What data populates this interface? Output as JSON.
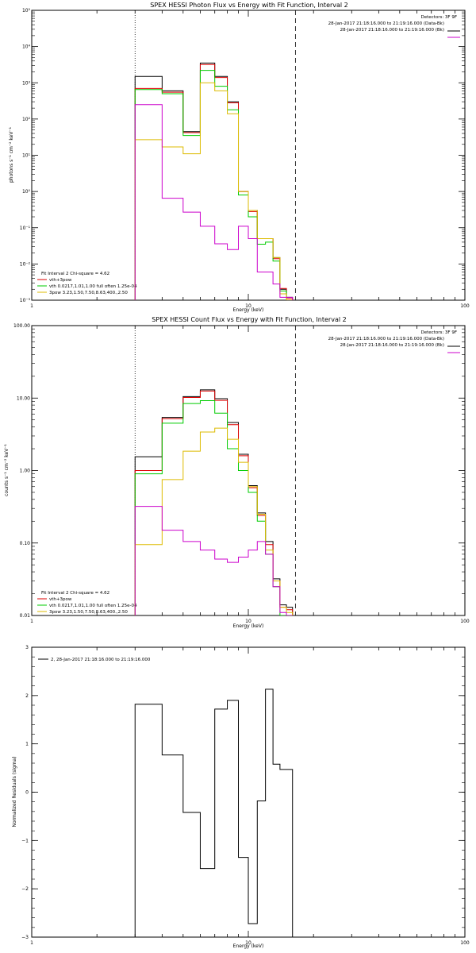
{
  "chart_data": [
    {
      "type": "line",
      "title": "SPEX HESSI Photon Flux vs Energy with Fit Function, Interval 2",
      "xlabel": "Energy (keV)",
      "ylabel": "photons s⁻¹ cm⁻² keV⁻¹",
      "xscale": "log",
      "yscale": "log",
      "xlim": [
        1,
        100
      ],
      "ylim": [
        0.001,
        100000
      ],
      "x_tick_labels": [
        "1",
        "10",
        "100"
      ],
      "y_tick_labels": [
        "10⁻³",
        "10⁻²",
        "10⁻¹",
        "10⁰",
        "10¹",
        "10²",
        "10³",
        "10⁴",
        "10⁵"
      ],
      "step": true,
      "energy_edges": [
        3,
        4,
        5,
        6,
        7,
        8,
        9,
        10,
        11,
        12,
        13,
        14,
        15,
        16
      ],
      "vlines": {
        "dotted": 3.0,
        "dashed": 16.5
      },
      "legend_top": {
        "header": "Detectors: 3F 9F",
        "entries": [
          {
            "label": "28-Jan-2017 21:18:16.000 to 21:19:16.000 (Data-Bk)",
            "color": "#000000"
          },
          {
            "label": "28-Jan-2017 21:18:16.000 to 21:19:16.000 (Bk)",
            "color": "#cc00cc"
          }
        ]
      },
      "legend_bottom": {
        "header": "Fit Interval 2   Chi-square = 4.62",
        "entries": [
          {
            "label": "vth+3pow",
            "color": "#dd0000"
          },
          {
            "label": "vth 0.0217,1.01,1.00  full often 1.25e-04",
            "color": "#00cc00"
          },
          {
            "label": "3pow 3.23,1.50,7.50,8.63,400.,2.50",
            "color": "#ddbb00"
          }
        ]
      },
      "series": [
        {
          "name": "Data-Bk",
          "color": "#000000",
          "values": [
            1500,
            600,
            45,
            3500,
            1500,
            300,
            1,
            0.3,
            0.05,
            0.05,
            0.015,
            0.002,
            0.0012
          ]
        },
        {
          "name": "vth+3pow",
          "color": "#dd0000",
          "values": [
            700,
            550,
            42,
            3200,
            1400,
            280,
            1,
            0.28,
            0.05,
            0.05,
            0.014,
            0.0021,
            0.0011
          ]
        },
        {
          "name": "vth",
          "color": "#00cc00",
          "values": [
            650,
            500,
            35,
            2200,
            800,
            180,
            0.8,
            0.2,
            0.035,
            0.04,
            0.012,
            0.0018,
            0.001
          ]
        },
        {
          "name": "3pow",
          "color": "#ddbb00",
          "values": [
            27,
            17,
            11,
            1000,
            600,
            140,
            1,
            0.3,
            0.05,
            0.05,
            0.015,
            0.0015,
            0.001
          ]
        },
        {
          "name": "Bk",
          "color": "#cc00cc",
          "values": [
            250,
            0.65,
            0.27,
            0.11,
            0.036,
            0.025,
            0.11,
            0.05,
            0.006,
            0.006,
            0.0028,
            0.0012,
            0.0012
          ]
        }
      ]
    },
    {
      "type": "line",
      "title": "SPEX HESSI Count Flux vs Energy with Fit Function, Interval 2",
      "xlabel": "Energy (keV)",
      "ylabel": "counts s⁻¹ cm⁻² keV⁻¹",
      "xscale": "log",
      "yscale": "log",
      "xlim": [
        1,
        100
      ],
      "ylim": [
        0.01,
        100
      ],
      "x_tick_labels": [
        "1",
        "10",
        "100"
      ],
      "y_tick_labels": [
        "0.01",
        "0.10",
        "1.00",
        "10.00",
        "100.00"
      ],
      "step": true,
      "energy_edges": [
        3,
        4,
        5,
        6,
        7,
        8,
        9,
        10,
        11,
        12,
        13,
        14,
        15,
        16
      ],
      "vlines": {
        "dotted": 3.0,
        "dashed": 16.5
      },
      "legend_top": {
        "header": "Detectors: 3F 9F",
        "entries": [
          {
            "label": "28-Jan-2017 21:18:16.000 to 21:19:16.000 (Data-Bk)",
            "color": "#000000"
          },
          {
            "label": "28-Jan-2017 21:18:16.000 to 21:19:16.000 (Bk)",
            "color": "#cc00cc"
          }
        ]
      },
      "legend_bottom": {
        "header": "Fit Interval 2   Chi-square = 4.62",
        "entries": [
          {
            "label": "vth+3pow",
            "color": "#dd0000"
          },
          {
            "label": "vth 0.0217,1.01,1.00  full often 1.25e-04",
            "color": "#00cc00"
          },
          {
            "label": "3pow 3.23,1.50,7.50,8.63,400.,2.50",
            "color": "#ddbb00"
          }
        ]
      },
      "series": [
        {
          "name": "Data-Bk",
          "color": "#000000",
          "values": [
            1.55,
            5.4,
            10.5,
            13.0,
            9.8,
            4.6,
            1.68,
            0.62,
            0.26,
            0.105,
            0.032,
            0.014,
            0.013
          ]
        },
        {
          "name": "vth+3pow",
          "color": "#dd0000",
          "values": [
            1.0,
            5.2,
            10.2,
            12.5,
            9.3,
            4.3,
            1.6,
            0.58,
            0.24,
            0.095,
            0.03,
            0.013,
            0.012
          ]
        },
        {
          "name": "vth",
          "color": "#00cc00",
          "values": [
            0.9,
            4.5,
            8.4,
            9.2,
            6.2,
            2.0,
            1.0,
            0.5,
            0.2,
            0.07,
            0.025,
            0.01,
            0.01
          ]
        },
        {
          "name": "3pow",
          "color": "#ddbb00",
          "values": [
            0.095,
            0.75,
            1.85,
            3.4,
            3.85,
            2.7,
            1.3,
            0.6,
            0.25,
            0.08,
            0.03,
            0.013,
            0.011
          ]
        },
        {
          "name": "Bk",
          "color": "#cc00cc",
          "values": [
            0.32,
            0.15,
            0.105,
            0.08,
            0.06,
            0.054,
            0.064,
            0.08,
            0.105,
            0.07,
            0.025,
            0.011,
            0.01
          ]
        }
      ]
    },
    {
      "type": "line",
      "title": "",
      "xlabel": "Energy (keV)",
      "ylabel": "Normalized Residuals (sigma)",
      "xscale": "log",
      "xlim": [
        1,
        100
      ],
      "ylim": [
        -3,
        3
      ],
      "x_tick_labels": [
        "1",
        "10",
        "100"
      ],
      "y_tick_labels": [
        "−3",
        "−2",
        "−1",
        "0",
        "1",
        "2",
        "3"
      ],
      "step": true,
      "energy_edges": [
        3,
        4,
        5,
        6,
        7,
        8,
        9,
        10,
        11,
        12,
        13,
        14,
        15,
        16
      ],
      "legend": [
        {
          "label": "2, 28-Jan-2017 21:18:16.000 to 21:19:16.000",
          "color": "#000000"
        }
      ],
      "series": [
        {
          "name": "2, 28-Jan-2017 21:18:16.000 to 21:19:16.000",
          "color": "#000000",
          "values": [
            1.82,
            0.77,
            -0.42,
            -1.58,
            1.72,
            1.9,
            -1.35,
            -2.72,
            -0.18,
            2.13,
            0.58,
            0.47,
            0.47
          ]
        }
      ]
    }
  ]
}
